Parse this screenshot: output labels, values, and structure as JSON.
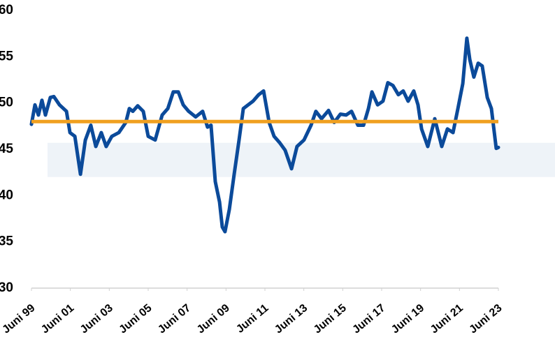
{
  "chart_data": {
    "type": "line",
    "x": [
      1999.42,
      1999.6,
      1999.78,
      1999.96,
      2000.14,
      2000.39,
      2000.57,
      2000.86,
      2001.22,
      2001.4,
      2001.65,
      2001.94,
      2002.19,
      2002.47,
      2002.73,
      2003.01,
      2003.26,
      2003.55,
      2003.91,
      2004.27,
      2004.45,
      2004.63,
      2004.88,
      2005.17,
      2005.42,
      2005.78,
      2006.14,
      2006.43,
      2006.71,
      2006.97,
      2007.22,
      2007.5,
      2007.86,
      2008.22,
      2008.47,
      2008.65,
      2008.87,
      2009.09,
      2009.23,
      2009.37,
      2009.59,
      2009.84,
      2010.09,
      2010.31,
      2010.56,
      2010.81,
      2011.1,
      2011.35,
      2011.64,
      2011.89,
      2012.18,
      2012.46,
      2012.79,
      2013.07,
      2013.43,
      2013.79,
      2014.04,
      2014.33,
      2014.69,
      2014.98,
      2015.3,
      2015.59,
      2015.87,
      2016.2,
      2016.49,
      2016.74,
      2016.92,
      2017.21,
      2017.49,
      2017.74,
      2018.0,
      2018.28,
      2018.53,
      2018.78,
      2019.07,
      2019.29,
      2019.47,
      2019.79,
      2020.15,
      2020.51,
      2020.8,
      2021.09,
      2021.34,
      2021.59,
      2021.8,
      2021.95,
      2022.16,
      2022.38,
      2022.59,
      2022.85,
      2023.06,
      2023.31,
      2023.42
    ],
    "series": [
      {
        "color": "#0b4a9a",
        "values": [
          47.7,
          49.8,
          48.7,
          50.3,
          48.7,
          50.6,
          50.7,
          49.8,
          49.1,
          46.8,
          46.4,
          42.3,
          46.0,
          47.6,
          45.3,
          46.8,
          45.3,
          46.4,
          46.8,
          47.9,
          49.4,
          49.1,
          49.7,
          49.1,
          46.4,
          46.0,
          48.7,
          49.4,
          51.2,
          51.2,
          49.8,
          49.1,
          48.5,
          49.1,
          47.4,
          47.6,
          41.5,
          39.3,
          36.6,
          36.1,
          38.5,
          42.3,
          46.0,
          49.4,
          49.8,
          50.2,
          50.9,
          51.3,
          47.9,
          46.4,
          45.7,
          44.9,
          42.9,
          45.3,
          46.0,
          47.6,
          49.1,
          48.3,
          49.2,
          47.9,
          48.8,
          48.7,
          49.1,
          47.6,
          47.6,
          49.4,
          51.2,
          49.8,
          50.2,
          52.2,
          51.9,
          50.9,
          51.3,
          50.2,
          51.3,
          49.8,
          47.2,
          45.3,
          48.3,
          45.3,
          47.2,
          46.8,
          49.4,
          52.1,
          57.0,
          54.7,
          52.8,
          54.3,
          54.0,
          50.6,
          49.4,
          45.1,
          45.2
        ]
      }
    ],
    "reference_line": {
      "value": 48,
      "color": "#f0a020"
    },
    "band": {
      "range": [
        42,
        45.7
      ],
      "color": "#eef3f8"
    },
    "xlim": [
      1999.42,
      2023.42
    ],
    "xticks": [
      {
        "value": 1999.42,
        "label": "Juni 99"
      },
      {
        "value": 2001.42,
        "label": "Juni 01"
      },
      {
        "value": 2003.42,
        "label": "Juni 03"
      },
      {
        "value": 2005.42,
        "label": "Juni 05"
      },
      {
        "value": 2007.42,
        "label": "Juni 07"
      },
      {
        "value": 2009.42,
        "label": "Juni 09"
      },
      {
        "value": 2011.42,
        "label": "Juni 11"
      },
      {
        "value": 2013.42,
        "label": "Juni 13"
      },
      {
        "value": 2015.42,
        "label": "Juni 15"
      },
      {
        "value": 2017.42,
        "label": "Juni 17"
      },
      {
        "value": 2019.42,
        "label": "Juni 19"
      },
      {
        "value": 2021.42,
        "label": "Juni 21"
      },
      {
        "value": 2023.42,
        "label": "Juni 23"
      }
    ],
    "ylim": [
      30,
      60
    ],
    "yticks": [
      30,
      35,
      40,
      45,
      50,
      55,
      60
    ]
  }
}
